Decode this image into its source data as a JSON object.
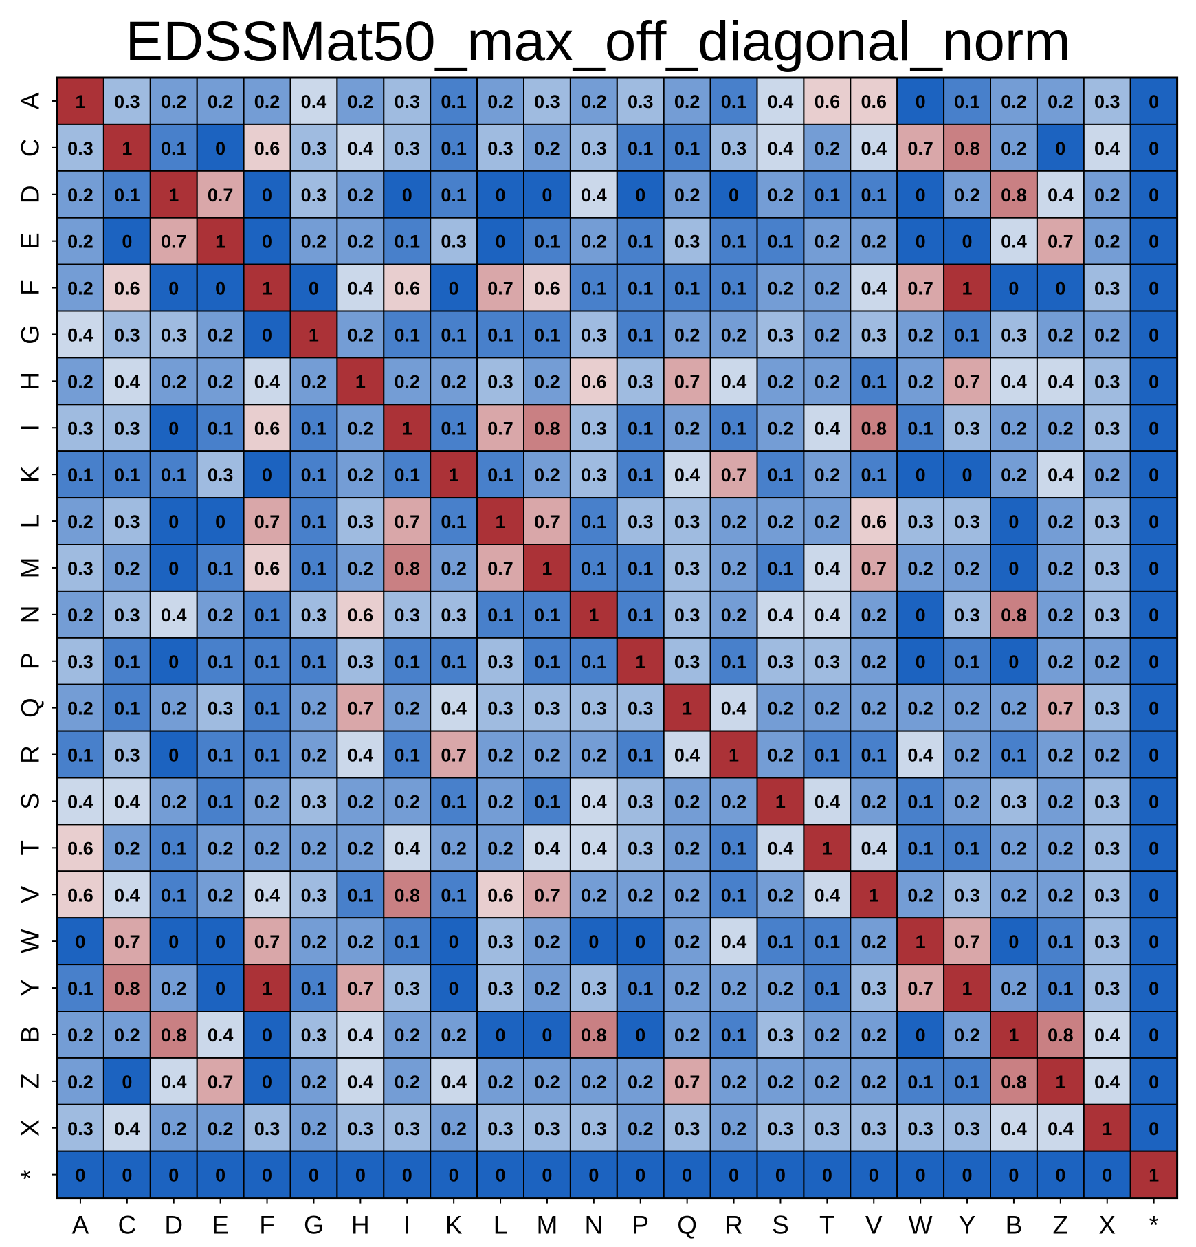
{
  "chart_data": {
    "type": "heatmap",
    "title": "EDSSMat50_max_off_diagonal_norm",
    "xlabel": "",
    "ylabel": "",
    "x_categories": [
      "A",
      "C",
      "D",
      "E",
      "F",
      "G",
      "H",
      "I",
      "K",
      "L",
      "M",
      "N",
      "P",
      "Q",
      "R",
      "S",
      "T",
      "V",
      "W",
      "Y",
      "B",
      "Z",
      "X",
      "*"
    ],
    "y_categories": [
      "A",
      "C",
      "D",
      "E",
      "F",
      "G",
      "H",
      "I",
      "K",
      "L",
      "M",
      "N",
      "P",
      "Q",
      "R",
      "S",
      "T",
      "V",
      "W",
      "Y",
      "B",
      "Z",
      "X",
      "*"
    ],
    "values": [
      [
        1,
        0.3,
        0.2,
        0.2,
        0.2,
        0.4,
        0.2,
        0.3,
        0.1,
        0.2,
        0.3,
        0.2,
        0.3,
        0.2,
        0.1,
        0.4,
        0.6,
        0.6,
        0,
        0.1,
        0.2,
        0.2,
        0.3,
        0
      ],
      [
        0.3,
        1,
        0.1,
        0,
        0.6,
        0.3,
        0.4,
        0.3,
        0.1,
        0.3,
        0.2,
        0.3,
        0.1,
        0.1,
        0.3,
        0.4,
        0.2,
        0.4,
        0.7,
        0.8,
        0.2,
        0,
        0.4,
        0
      ],
      [
        0.2,
        0.1,
        1,
        0.7,
        0,
        0.3,
        0.2,
        0,
        0.1,
        0,
        0,
        0.4,
        0,
        0.2,
        0,
        0.2,
        0.1,
        0.1,
        0,
        0.2,
        0.8,
        0.4,
        0.2,
        0
      ],
      [
        0.2,
        0,
        0.7,
        1,
        0,
        0.2,
        0.2,
        0.1,
        0.3,
        0,
        0.1,
        0.2,
        0.1,
        0.3,
        0.1,
        0.1,
        0.2,
        0.2,
        0,
        0,
        0.4,
        0.7,
        0.2,
        0
      ],
      [
        0.2,
        0.6,
        0,
        0,
        1,
        0,
        0.4,
        0.6,
        0,
        0.7,
        0.6,
        0.1,
        0.1,
        0.1,
        0.1,
        0.2,
        0.2,
        0.4,
        0.7,
        1,
        0,
        0,
        0.3,
        0
      ],
      [
        0.4,
        0.3,
        0.3,
        0.2,
        0,
        1,
        0.2,
        0.1,
        0.1,
        0.1,
        0.1,
        0.3,
        0.1,
        0.2,
        0.2,
        0.3,
        0.2,
        0.3,
        0.2,
        0.1,
        0.3,
        0.2,
        0.2,
        0
      ],
      [
        0.2,
        0.4,
        0.2,
        0.2,
        0.4,
        0.2,
        1,
        0.2,
        0.2,
        0.3,
        0.2,
        0.6,
        0.3,
        0.7,
        0.4,
        0.2,
        0.2,
        0.1,
        0.2,
        0.7,
        0.4,
        0.4,
        0.3,
        0
      ],
      [
        0.3,
        0.3,
        0,
        0.1,
        0.6,
        0.1,
        0.2,
        1,
        0.1,
        0.7,
        0.8,
        0.3,
        0.1,
        0.2,
        0.1,
        0.2,
        0.4,
        0.8,
        0.1,
        0.3,
        0.2,
        0.2,
        0.3,
        0
      ],
      [
        0.1,
        0.1,
        0.1,
        0.3,
        0,
        0.1,
        0.2,
        0.1,
        1,
        0.1,
        0.2,
        0.3,
        0.1,
        0.4,
        0.7,
        0.1,
        0.2,
        0.1,
        0,
        0,
        0.2,
        0.4,
        0.2,
        0
      ],
      [
        0.2,
        0.3,
        0,
        0,
        0.7,
        0.1,
        0.3,
        0.7,
        0.1,
        1,
        0.7,
        0.1,
        0.3,
        0.3,
        0.2,
        0.2,
        0.2,
        0.6,
        0.3,
        0.3,
        0,
        0.2,
        0.3,
        0
      ],
      [
        0.3,
        0.2,
        0,
        0.1,
        0.6,
        0.1,
        0.2,
        0.8,
        0.2,
        0.7,
        1,
        0.1,
        0.1,
        0.3,
        0.2,
        0.1,
        0.4,
        0.7,
        0.2,
        0.2,
        0,
        0.2,
        0.3,
        0
      ],
      [
        0.2,
        0.3,
        0.4,
        0.2,
        0.1,
        0.3,
        0.6,
        0.3,
        0.3,
        0.1,
        0.1,
        1,
        0.1,
        0.3,
        0.2,
        0.4,
        0.4,
        0.2,
        0,
        0.3,
        0.8,
        0.2,
        0.3,
        0
      ],
      [
        0.3,
        0.1,
        0,
        0.1,
        0.1,
        0.1,
        0.3,
        0.1,
        0.1,
        0.3,
        0.1,
        0.1,
        1,
        0.3,
        0.1,
        0.3,
        0.3,
        0.2,
        0,
        0.1,
        0,
        0.2,
        0.2,
        0
      ],
      [
        0.2,
        0.1,
        0.2,
        0.3,
        0.1,
        0.2,
        0.7,
        0.2,
        0.4,
        0.3,
        0.3,
        0.3,
        0.3,
        1,
        0.4,
        0.2,
        0.2,
        0.2,
        0.2,
        0.2,
        0.2,
        0.7,
        0.3,
        0
      ],
      [
        0.1,
        0.3,
        0,
        0.1,
        0.1,
        0.2,
        0.4,
        0.1,
        0.7,
        0.2,
        0.2,
        0.2,
        0.1,
        0.4,
        1,
        0.2,
        0.1,
        0.1,
        0.4,
        0.2,
        0.1,
        0.2,
        0.2,
        0
      ],
      [
        0.4,
        0.4,
        0.2,
        0.1,
        0.2,
        0.3,
        0.2,
        0.2,
        0.1,
        0.2,
        0.1,
        0.4,
        0.3,
        0.2,
        0.2,
        1,
        0.4,
        0.2,
        0.1,
        0.2,
        0.3,
        0.2,
        0.3,
        0
      ],
      [
        0.6,
        0.2,
        0.1,
        0.2,
        0.2,
        0.2,
        0.2,
        0.4,
        0.2,
        0.2,
        0.4,
        0.4,
        0.3,
        0.2,
        0.1,
        0.4,
        1,
        0.4,
        0.1,
        0.1,
        0.2,
        0.2,
        0.3,
        0
      ],
      [
        0.6,
        0.4,
        0.1,
        0.2,
        0.4,
        0.3,
        0.1,
        0.8,
        0.1,
        0.6,
        0.7,
        0.2,
        0.2,
        0.2,
        0.1,
        0.2,
        0.4,
        1,
        0.2,
        0.3,
        0.2,
        0.2,
        0.3,
        0
      ],
      [
        0,
        0.7,
        0,
        0,
        0.7,
        0.2,
        0.2,
        0.1,
        0,
        0.3,
        0.2,
        0,
        0,
        0.2,
        0.4,
        0.1,
        0.1,
        0.2,
        1,
        0.7,
        0,
        0.1,
        0.3,
        0
      ],
      [
        0.1,
        0.8,
        0.2,
        0,
        1,
        0.1,
        0.7,
        0.3,
        0,
        0.3,
        0.2,
        0.3,
        0.1,
        0.2,
        0.2,
        0.2,
        0.1,
        0.3,
        0.7,
        1,
        0.2,
        0.1,
        0.3,
        0
      ],
      [
        0.2,
        0.2,
        0.8,
        0.4,
        0,
        0.3,
        0.4,
        0.2,
        0.2,
        0,
        0,
        0.8,
        0,
        0.2,
        0.1,
        0.3,
        0.2,
        0.2,
        0,
        0.2,
        1,
        0.8,
        0.4,
        0
      ],
      [
        0.2,
        0,
        0.4,
        0.7,
        0,
        0.2,
        0.4,
        0.2,
        0.4,
        0.2,
        0.2,
        0.2,
        0.2,
        0.7,
        0.2,
        0.2,
        0.2,
        0.2,
        0.1,
        0.1,
        0.8,
        1,
        0.4,
        0
      ],
      [
        0.3,
        0.4,
        0.2,
        0.2,
        0.3,
        0.2,
        0.3,
        0.3,
        0.2,
        0.3,
        0.3,
        0.3,
        0.2,
        0.3,
        0.2,
        0.3,
        0.3,
        0.3,
        0.3,
        0.3,
        0.4,
        0.4,
        1,
        0
      ],
      [
        0,
        0,
        0,
        0,
        0,
        0,
        0,
        0,
        0,
        0,
        0,
        0,
        0,
        0,
        0,
        0,
        0,
        0,
        0,
        0,
        0,
        0,
        0,
        1
      ]
    ],
    "value_range": [
      0,
      1
    ],
    "colormap": {
      "low": "#1c63c0",
      "mid": "#f7f5f5",
      "high": "#ab3237",
      "center": 0.5
    },
    "legend": "none",
    "grid": true
  }
}
